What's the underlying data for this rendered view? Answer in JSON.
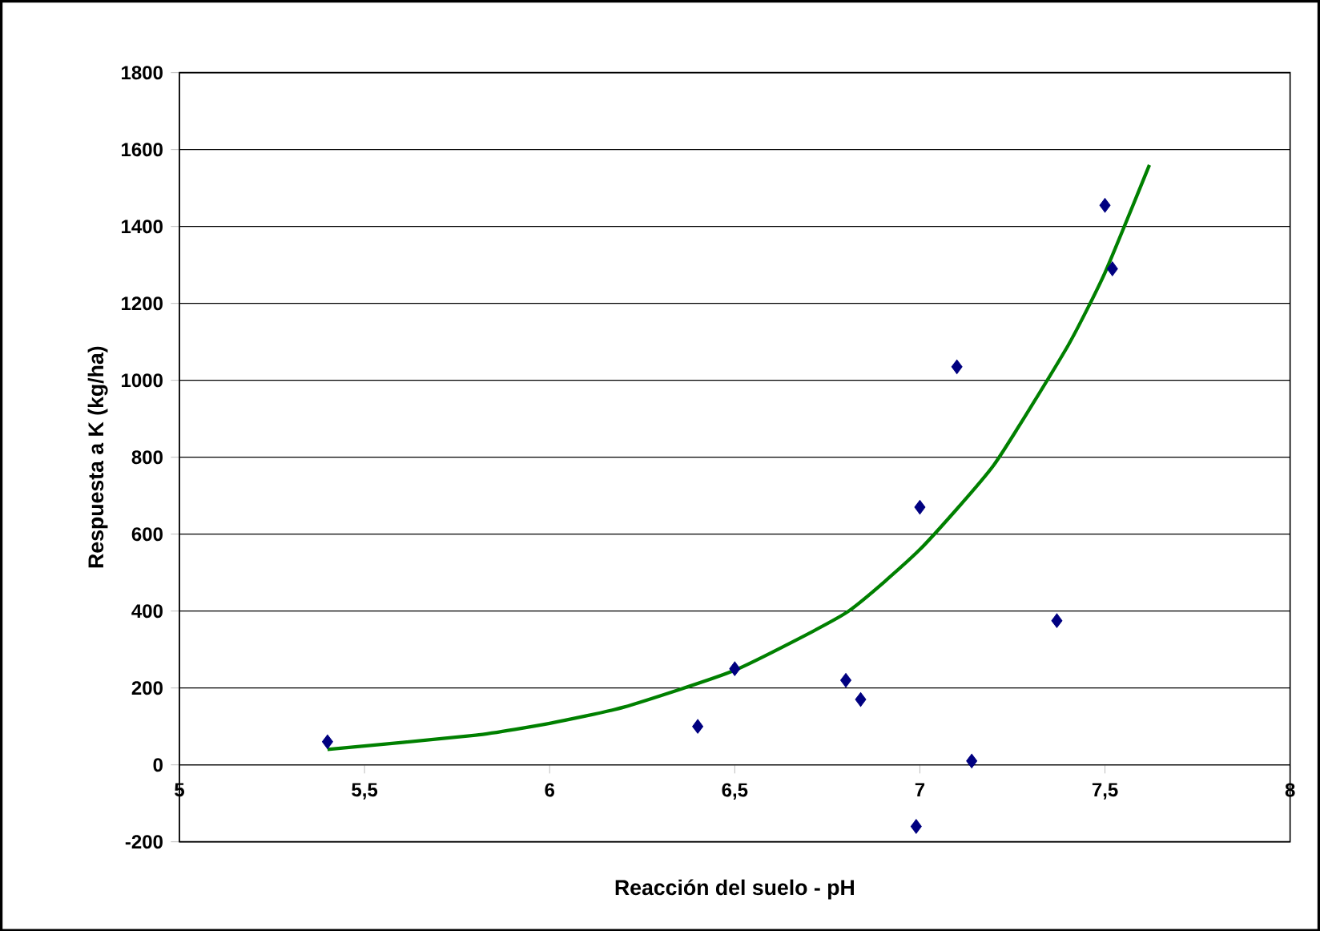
{
  "chart_data": {
    "type": "scatter",
    "xlabel": "Reacción del suelo - pH",
    "ylabel": "Respuesta a K (kg/ha)",
    "xlim": [
      5,
      8
    ],
    "xticks": [
      {
        "value": 5,
        "label": "5"
      },
      {
        "value": 5.5,
        "label": "5,5"
      },
      {
        "value": 6,
        "label": "6"
      },
      {
        "value": 6.5,
        "label": "6,5"
      },
      {
        "value": 7,
        "label": "7"
      },
      {
        "value": 7.5,
        "label": "7,5"
      },
      {
        "value": 8,
        "label": "8"
      }
    ],
    "ylim": [
      -200,
      1800
    ],
    "yticks": [
      -200,
      0,
      200,
      400,
      600,
      800,
      1000,
      1200,
      1400,
      1600,
      1800
    ],
    "grid": "y",
    "series": [
      {
        "color": "#000080",
        "marker": "diamond",
        "x": [
          5.4,
          6.4,
          6.5,
          6.8,
          6.84,
          6.99,
          7.0,
          7.1,
          7.14,
          7.37,
          7.5,
          7.52
        ],
        "values": [
          60,
          100,
          250,
          220,
          170,
          -160,
          670,
          1035,
          10,
          375,
          1455,
          1290
        ]
      },
      {
        "type": "line",
        "color": "#008000",
        "marker": "none",
        "line_style": "solid",
        "x": [
          5.4,
          5.8,
          6.0,
          6.2,
          6.5,
          6.8,
          7.0,
          7.2,
          7.4,
          7.5,
          7.62
        ],
        "values": [
          40,
          77,
          108,
          150,
          246,
          395,
          560,
          780,
          1090,
          1280,
          1560
        ]
      }
    ]
  }
}
